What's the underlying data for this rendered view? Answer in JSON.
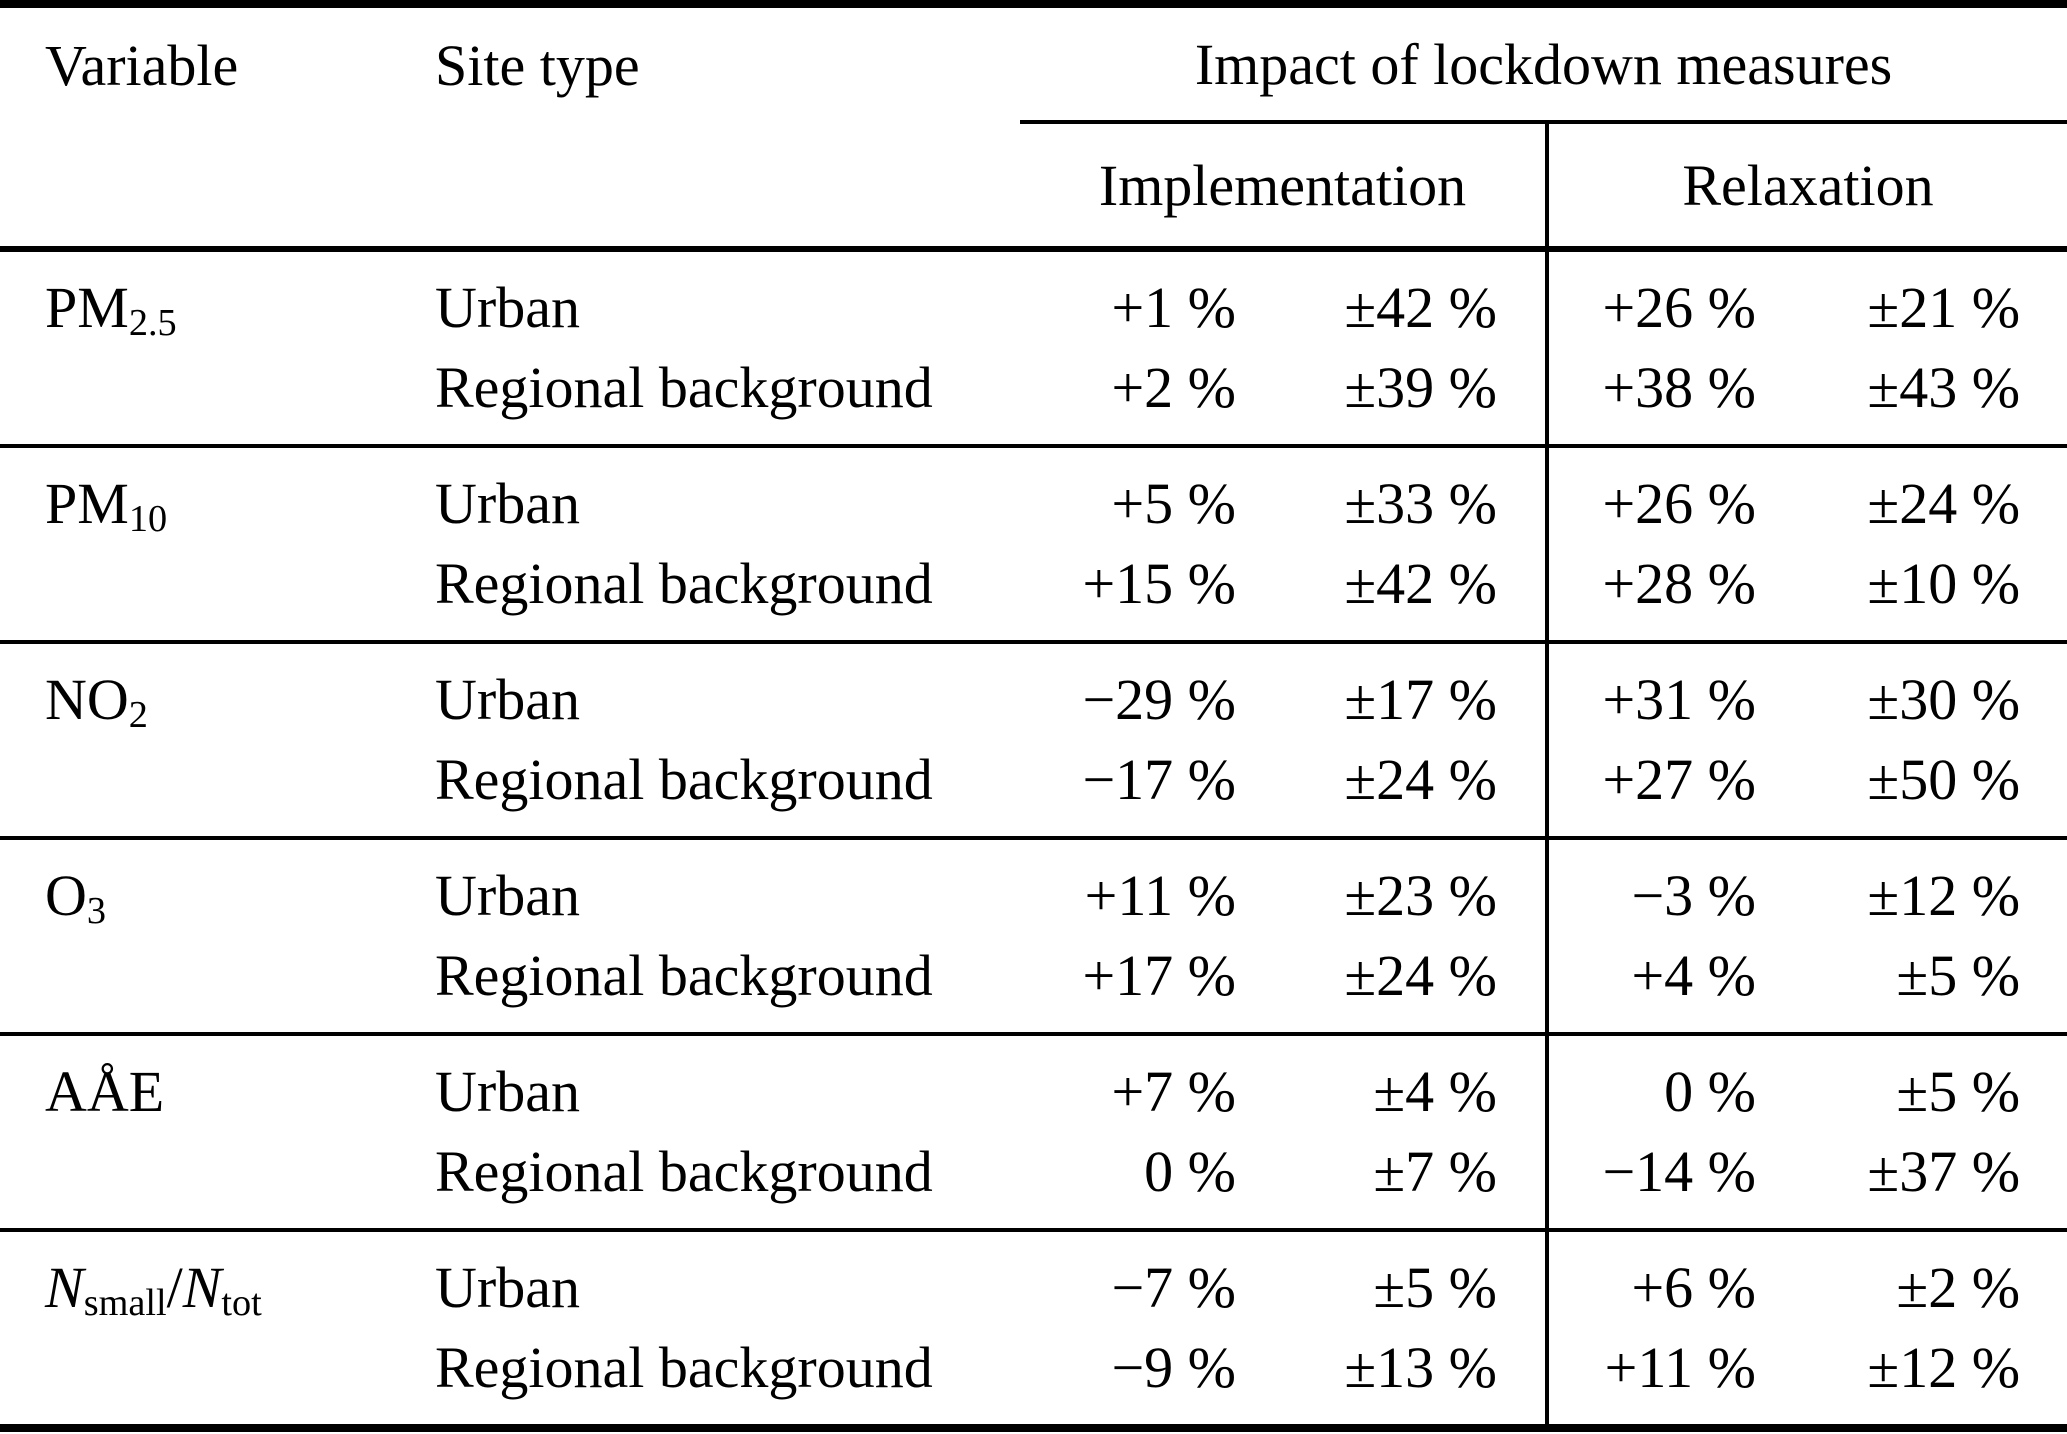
{
  "header": {
    "variable": "Variable",
    "site_type": "Site type",
    "spanner": "Impact of lockdown measures",
    "implementation": "Implementation",
    "relaxation": "Relaxation"
  },
  "groups": [
    {
      "variable_parts": [
        {
          "t": "PM"
        },
        {
          "t": "2.5",
          "s": "sub"
        }
      ],
      "rows": [
        {
          "site": "Urban",
          "impl": "+1 %",
          "impl_err": "±42 %",
          "relax": "+26 %",
          "relax_err": "±21 %"
        },
        {
          "site": "Regional background",
          "impl": "+2 %",
          "impl_err": "±39 %",
          "relax": "+38 %",
          "relax_err": "±43 %"
        }
      ]
    },
    {
      "variable_parts": [
        {
          "t": "PM"
        },
        {
          "t": "10",
          "s": "sub"
        }
      ],
      "rows": [
        {
          "site": "Urban",
          "impl": "+5 %",
          "impl_err": "±33 %",
          "relax": "+26 %",
          "relax_err": "±24 %"
        },
        {
          "site": "Regional background",
          "impl": "+15 %",
          "impl_err": "±42 %",
          "relax": "+28 %",
          "relax_err": "±10 %"
        }
      ]
    },
    {
      "variable_parts": [
        {
          "t": "NO"
        },
        {
          "t": "2",
          "s": "sub"
        }
      ],
      "rows": [
        {
          "site": "Urban",
          "impl": "−29 %",
          "impl_err": "±17 %",
          "relax": "+31 %",
          "relax_err": "±30 %"
        },
        {
          "site": "Regional background",
          "impl": "−17 %",
          "impl_err": "±24 %",
          "relax": "+27 %",
          "relax_err": "±50 %"
        }
      ]
    },
    {
      "variable_parts": [
        {
          "t": "O"
        },
        {
          "t": "3",
          "s": "sub"
        }
      ],
      "rows": [
        {
          "site": "Urban",
          "impl": "+11 %",
          "impl_err": "±23 %",
          "relax": "−3 %",
          "relax_err": "±12 %"
        },
        {
          "site": "Regional background",
          "impl": "+17 %",
          "impl_err": "±24 %",
          "relax": "+4 %",
          "relax_err": "±5 %"
        }
      ]
    },
    {
      "variable_parts": [
        {
          "t": "AÅE"
        }
      ],
      "rows": [
        {
          "site": "Urban",
          "impl": "+7 %",
          "impl_err": "±4 %",
          "relax": "0 %",
          "relax_err": "±5 %"
        },
        {
          "site": "Regional background",
          "impl": "0 %",
          "impl_err": "±7 %",
          "relax": "−14 %",
          "relax_err": "±37 %"
        }
      ]
    },
    {
      "variable_parts": [
        {
          "t": "N",
          "s": "it"
        },
        {
          "t": "small",
          "s": "sub"
        },
        {
          "t": "/"
        },
        {
          "t": "N",
          "s": "it"
        },
        {
          "t": "tot",
          "s": "sub"
        }
      ],
      "rows": [
        {
          "site": "Urban",
          "impl": "−7 %",
          "impl_err": "±5 %",
          "relax": "+6 %",
          "relax_err": "±2 %"
        },
        {
          "site": "Regional background",
          "impl": "−9 %",
          "impl_err": "±13 %",
          "relax": "+11 %",
          "relax_err": "±12 %"
        }
      ]
    }
  ]
}
